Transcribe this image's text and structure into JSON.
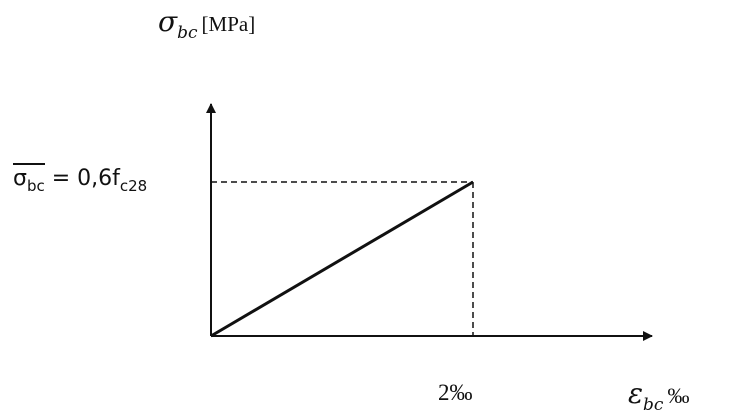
{
  "y_axis": {
    "symbol": "σ",
    "subscript": "bc",
    "unit": "[MPa]"
  },
  "x_axis": {
    "symbol": "ε",
    "subscript": "bc",
    "unit": "‰"
  },
  "stress_label": {
    "symbol": "σ",
    "subscript": "bc",
    "equals": " = 0,6f",
    "f_subscript": "c28"
  },
  "strain_tick": "2‰",
  "colors": {
    "line": "#111111",
    "background": "#ffffff"
  }
}
